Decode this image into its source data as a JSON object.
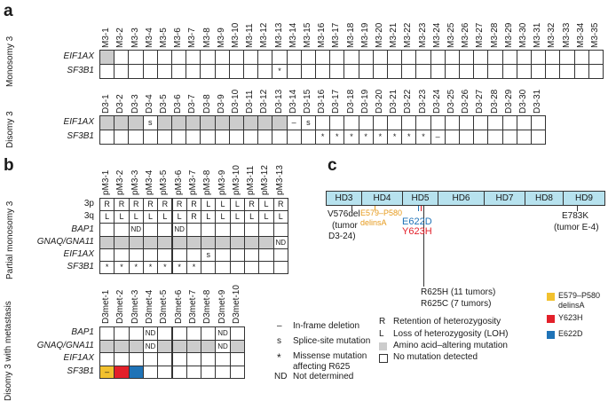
{
  "panel_a": {
    "label": "a",
    "group1": {
      "side_label": "Monosomy 3",
      "columns": [
        "M3-1",
        "M3-2",
        "M3-3",
        "M3-4",
        "M3-5",
        "M3-6",
        "M3-7",
        "M3-8",
        "M3-9",
        "M3-10",
        "M3-11",
        "M3-12",
        "M3-13",
        "M3-14",
        "M3-15",
        "M3-16",
        "M3-17",
        "M3-18",
        "M3-19",
        "M3-20",
        "M3-21",
        "M3-22",
        "M3-23",
        "M3-24",
        "M3-25",
        "M3-26",
        "M3-27",
        "M3-28",
        "M3-29",
        "M3-30",
        "M3-31",
        "M3-32",
        "M3-33",
        "M3-34",
        "M3-35"
      ],
      "rows": [
        {
          "label": "EIF1AX",
          "cells": [
            "g",
            "",
            "",
            "",
            "",
            "",
            "",
            "",
            "",
            "",
            "",
            "",
            "",
            "",
            "",
            "",
            "",
            "",
            "",
            "",
            "",
            "",
            "",
            "",
            "",
            "",
            "",
            "",
            "",
            "",
            "",
            "",
            "",
            "",
            ""
          ]
        },
        {
          "label": "SF3B1",
          "cells": [
            "",
            "",
            "",
            "",
            "",
            "",
            "",
            "",
            "",
            "",
            "",
            "",
            "*",
            "",
            "",
            "",
            "",
            "",
            "",
            "",
            "",
            "",
            "",
            "",
            "",
            "",
            "",
            "",
            "",
            "",
            "",
            "",
            "",
            "",
            ""
          ]
        }
      ]
    },
    "group2": {
      "side_label": "Disomy 3",
      "columns": [
        "D3-1",
        "D3-2",
        "D3-3",
        "D3-4",
        "D3-5",
        "D3-6",
        "D3-7",
        "D3-8",
        "D3-9",
        "D3-10",
        "D3-11",
        "D3-12",
        "D3-13",
        "D3-14",
        "D3-15",
        "D3-16",
        "D3-17",
        "D3-18",
        "D3-19",
        "D3-20",
        "D3-21",
        "D3-22",
        "D3-23",
        "D3-24",
        "D3-25",
        "D3-26",
        "D3-27",
        "D3-28",
        "D3-29",
        "D3-30",
        "D3-31"
      ],
      "rows": [
        {
          "label": "EIF1AX",
          "cells": [
            "g",
            "g",
            "g",
            "s",
            "g",
            "g",
            "g",
            "g",
            "g",
            "g",
            "g",
            "g",
            "g",
            "–",
            "s",
            "",
            "",
            "",
            "",
            "",
            "",
            "",
            "",
            "",
            "",
            "",
            "",
            "",
            "",
            "",
            ""
          ]
        },
        {
          "label": "SF3B1",
          "cells": [
            "",
            "",
            "",
            "",
            "",
            "",
            "",
            "",
            "",
            "",
            "",
            "",
            "",
            "",
            "",
            "*",
            "*",
            "*",
            "*",
            "*",
            "*",
            "*",
            "*",
            "–",
            "",
            "",
            "",
            "",
            "",
            "",
            ""
          ]
        }
      ]
    }
  },
  "panel_b": {
    "label": "b",
    "group1": {
      "side_label": "Partial monosomy 3",
      "columns": [
        "pM3-1",
        "pM3-2",
        "pM3-3",
        "pM3-4",
        "pM3-5",
        "pM3-6",
        "pM3-7",
        "pM3-8",
        "pM3-9",
        "pM3-10",
        "pM3-11",
        "pM3-12",
        "pM3-13"
      ],
      "rows": [
        {
          "label": "3p",
          "plain": true,
          "cells": [
            "R",
            "R",
            "R",
            "R",
            "R",
            "R",
            "R",
            "L",
            "L",
            "L",
            "R",
            "L",
            "R"
          ]
        },
        {
          "label": "3q",
          "plain": true,
          "cells": [
            "L",
            "L",
            "L",
            "L",
            "L",
            "L",
            "R",
            "L",
            "L",
            "L",
            "L",
            "L",
            "L"
          ]
        },
        {
          "label": "BAP1",
          "cells": [
            "",
            "",
            "ND",
            "",
            "",
            "ND",
            "",
            "",
            "",
            "",
            "",
            "",
            ""
          ]
        },
        {
          "label": "GNAQ/GNA11",
          "cells": [
            "g",
            "g",
            "g",
            "g",
            "g",
            "g",
            "g",
            "g",
            "g",
            "g",
            "g",
            "g",
            "ND"
          ]
        },
        {
          "label": "EIF1AX",
          "cells": [
            "",
            "",
            "",
            "",
            "",
            "",
            "",
            "s",
            "",
            "",
            "",
            "",
            ""
          ]
        },
        {
          "label": "SF3B1",
          "cells": [
            "*",
            "*",
            "*",
            "*",
            "*",
            "*",
            "*",
            "",
            "",
            "",
            "",
            "",
            ""
          ]
        }
      ]
    },
    "group2": {
      "side_label": "Disomy 3 with metastasis",
      "columns": [
        "D3met-1",
        "D3met-2",
        "D3met-3",
        "D3met-4",
        "D3met-5",
        "D3met-6",
        "D3met-7",
        "D3met-8",
        "D3met-9",
        "D3met-10"
      ],
      "rows": [
        {
          "label": "BAP1",
          "cells": [
            "",
            "",
            "",
            "ND",
            "",
            "",
            "",
            "",
            "ND",
            ""
          ]
        },
        {
          "label": "GNAQ/GNA11",
          "cells": [
            "g",
            "g",
            "g",
            "ND",
            "g",
            "g",
            "g",
            "g",
            "ND",
            "g"
          ]
        },
        {
          "label": "EIF1AX",
          "cells": [
            "",
            "",
            "",
            "",
            "",
            "",
            "",
            "",
            "",
            ""
          ]
        },
        {
          "label": "SF3B1",
          "cells": [
            "y",
            "r",
            "b",
            "",
            "",
            "",
            "",
            "",
            "",
            ""
          ]
        }
      ]
    },
    "legend": [
      {
        "symbol": "–",
        "text": "In-frame deletion"
      },
      {
        "symbol": "s",
        "text": "Splice-site mutation"
      },
      {
        "symbol": "*",
        "text": "Missense mutation"
      },
      {
        "symbol": "",
        "text": "affecting R625"
      },
      {
        "symbol": "ND",
        "text": "Not determined"
      }
    ],
    "yellow_cell_symbol": "–"
  },
  "panel_c": {
    "label": "c",
    "domains": [
      "HD3",
      "HD4",
      "HD5",
      "HD6",
      "HD7",
      "HD8",
      "HD9"
    ],
    "annotations": {
      "v576_line1": "V576del",
      "v576_line2": "(tumor",
      "v576_line3": "D3-24)",
      "e579_line1": "E579–P580",
      "e579_line2": "delinsA",
      "e622d": "E622D",
      "y623h": "Y623H",
      "r625h": "R625H (11 tumors)",
      "r625c": "R625C (7 tumors)",
      "e783k_line1": "E783K",
      "e783k_line2": "(tumor E-4)"
    },
    "legend": [
      {
        "key": "R",
        "text": "Retention of heterozygosity"
      },
      {
        "key": "L",
        "text": "Loss of heterozygosity (LOH)"
      },
      {
        "key": "gray",
        "text": "Amino acid–altering mutation"
      },
      {
        "key": "white",
        "text": "No mutation detected"
      }
    ],
    "color_legend": [
      {
        "text_line1": "E579–P580",
        "text_line2": "delinsA",
        "color": "#f2c12e"
      },
      {
        "text_line1": "Y623H",
        "text_line2": "",
        "color": "#e3202a"
      },
      {
        "text_line1": "E622D",
        "text_line2": "",
        "color": "#1f73b7"
      }
    ],
    "colors": {
      "orange_text": "#e69a1c",
      "blue_text": "#1f73b7",
      "red_text": "#e3202a",
      "domain_fill": "#b7e2ee",
      "gray": "#cccccc"
    }
  }
}
